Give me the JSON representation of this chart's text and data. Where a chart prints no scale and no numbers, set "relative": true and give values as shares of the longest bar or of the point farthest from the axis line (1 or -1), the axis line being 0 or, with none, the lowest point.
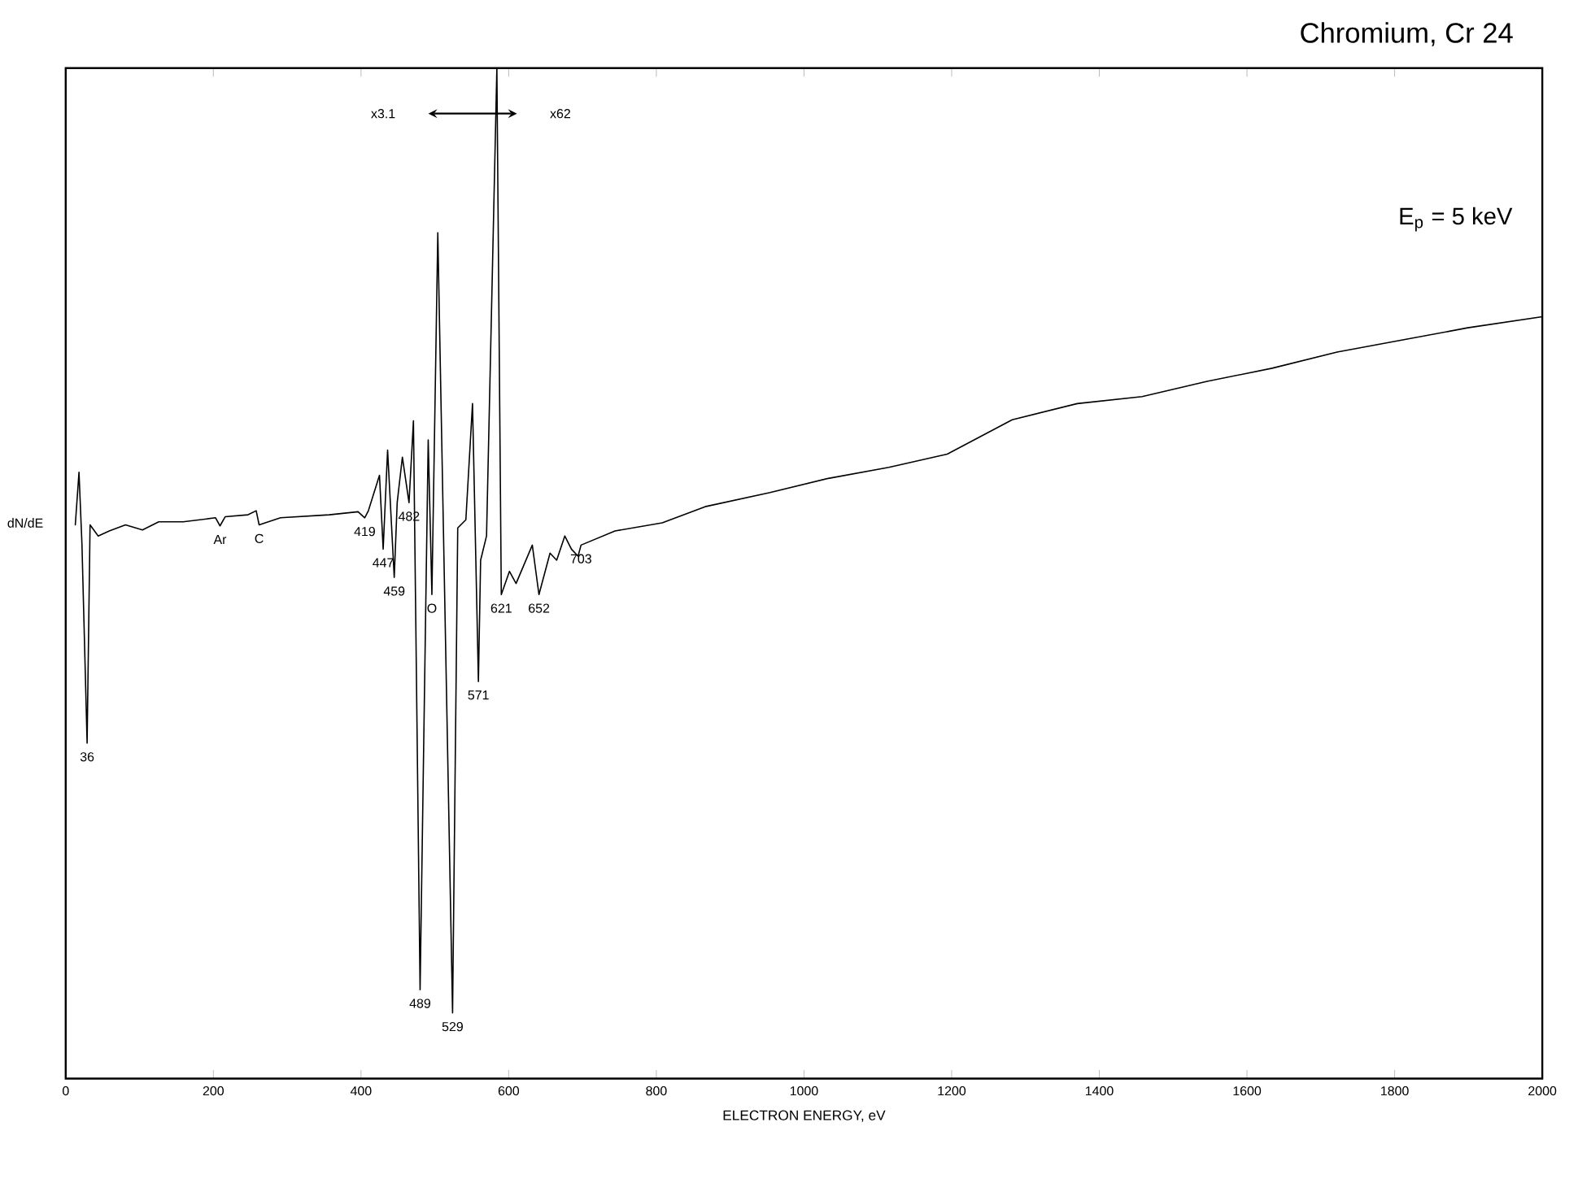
{
  "chart_data": {
    "type": "line",
    "title": "Chromium, Cr 24",
    "xlabel": "ELECTRON ENERGY, eV",
    "ylabel": "dN/dE",
    "relative": true,
    "xlim": [
      0,
      2000
    ],
    "xticks": [
      0,
      200,
      400,
      600,
      800,
      1000,
      1200,
      1400,
      1600,
      1800,
      2000
    ],
    "tick_labels": "x",
    "grid": false,
    "annotations": [
      "x3.1",
      "x62",
      "E$_{p}$ = 5 keV",
      {
        "text": "36",
        "x": 29,
        "y": 0.332
      },
      {
        "text": "Ar",
        "x": 209,
        "y": 0.547
      },
      {
        "text": "C",
        "x": 262,
        "y": 0.548
      },
      {
        "text": "419",
        "x": 405,
        "y": 0.555
      },
      {
        "text": "447",
        "x": 430,
        "y": 0.524
      },
      {
        "text": "459",
        "x": 445,
        "y": 0.496
      },
      {
        "text": "482",
        "x": 465,
        "y": 0.57
      },
      {
        "text": "O",
        "x": 496,
        "y": 0.479
      },
      {
        "text": "489",
        "x": 480,
        "y": 0.088
      },
      {
        "text": "529",
        "x": 524,
        "y": 0.065
      },
      {
        "text": "571",
        "x": 559,
        "y": 0.393
      },
      {
        "text": "621",
        "x": 590,
        "y": 0.479
      },
      {
        "text": "652",
        "x": 641,
        "y": 0.479
      },
      {
        "text": "703",
        "x": 698,
        "y": 0.528
      }
    ],
    "series": [
      {
        "color": "#000000",
        "x": [
          13,
          18,
          22,
          29,
          33,
          44,
          59,
          81,
          104,
          126,
          159,
          203,
          209,
          216,
          247,
          258,
          262,
          291,
          357,
          396,
          405,
          410,
          425,
          430,
          436,
          445,
          449,
          456,
          465,
          471,
          480,
          491,
          496,
          504,
          524,
          531,
          542,
          551,
          559,
          562,
          570,
          584,
          590,
          601,
          610,
          632,
          641,
          656,
          665,
          676,
          685,
          694,
          698,
          744,
          808,
          866,
          954,
          1033,
          1115,
          1194,
          1282,
          1370,
          1458,
          1546,
          1634,
          1722,
          1811,
          1899,
          2000
        ],
        "values": [
          0.548,
          0.6,
          0.529,
          0.332,
          0.548,
          0.537,
          0.542,
          0.548,
          0.543,
          0.551,
          0.551,
          0.555,
          0.547,
          0.556,
          0.558,
          0.562,
          0.548,
          0.555,
          0.558,
          0.561,
          0.555,
          0.562,
          0.597,
          0.524,
          0.622,
          0.496,
          0.57,
          0.615,
          0.57,
          0.651,
          0.088,
          0.632,
          0.479,
          0.837,
          0.065,
          0.545,
          0.553,
          0.668,
          0.393,
          0.513,
          0.537,
          1.0,
          0.479,
          0.502,
          0.49,
          0.528,
          0.479,
          0.52,
          0.513,
          0.537,
          0.524,
          0.517,
          0.528,
          0.542,
          0.55,
          0.566,
          0.58,
          0.594,
          0.605,
          0.618,
          0.652,
          0.668,
          0.675,
          0.69,
          0.703,
          0.719,
          0.731,
          0.743,
          0.754
        ]
      }
    ]
  }
}
